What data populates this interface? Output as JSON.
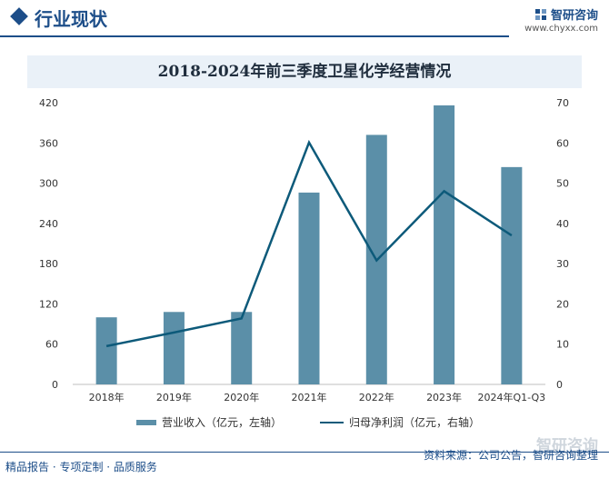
{
  "header": {
    "section_title": "行业现状",
    "brand_name": "智研咨询",
    "brand_url": "www.chyxx.com"
  },
  "chart_data": {
    "type": "bar",
    "title": "2018-2024年前三季度卫星化学经营情况",
    "categories": [
      "2018年",
      "2019年",
      "2020年",
      "2021年",
      "2022年",
      "2023年",
      "2024年Q1-Q3"
    ],
    "series": [
      {
        "name": "营业收入（亿元，左轴）",
        "type": "bar",
        "axis": "left",
        "color": "#5b8fa8",
        "values": [
          100,
          108,
          108,
          286,
          372,
          416,
          324
        ]
      },
      {
        "name": "归母净利润（亿元，右轴）",
        "type": "line",
        "axis": "right",
        "color": "#0d5a7a",
        "values": [
          9.5,
          12.9,
          16.4,
          60.1,
          30.8,
          48.0,
          37.0
        ]
      }
    ],
    "y_left": {
      "ylim": [
        0,
        420
      ],
      "ticks": [
        "0",
        "60",
        "120",
        "180",
        "240",
        "300",
        "360",
        "420"
      ]
    },
    "y_right": {
      "ylim": [
        0,
        70
      ],
      "ticks": [
        "0",
        "10",
        "20",
        "30",
        "40",
        "50",
        "60",
        "70"
      ]
    },
    "grid": false,
    "legend_position": "bottom"
  },
  "footer": {
    "left_text": "精品报告 · 专项定制 · 品质服务",
    "source_text": "资料来源：公司公告，智研咨询整理",
    "watermark_brand": "智研咨询"
  }
}
